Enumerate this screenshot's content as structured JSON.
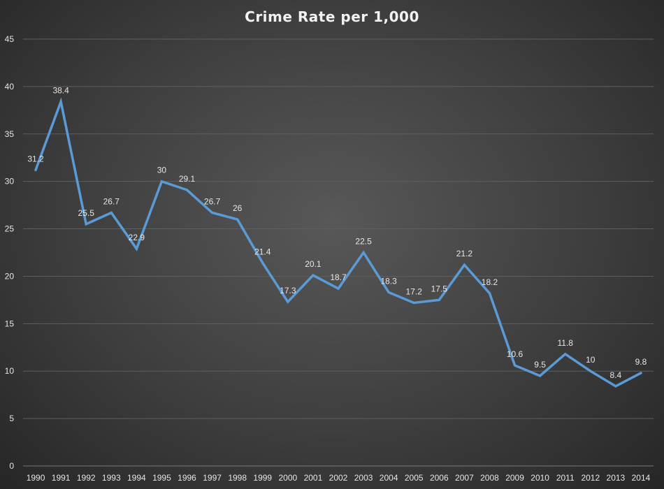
{
  "chart_data": {
    "type": "line",
    "title": "Crime Rate per 1,000",
    "xlabel": "",
    "ylabel": "",
    "ylim": [
      0,
      45
    ],
    "yticks": [
      0,
      5,
      10,
      15,
      20,
      25,
      30,
      35,
      40,
      45
    ],
    "grid": true,
    "categories": [
      "1990",
      "1991",
      "1992",
      "1993",
      "1994",
      "1995",
      "1996",
      "1997",
      "1998",
      "1999",
      "2000",
      "2001",
      "2002",
      "2003",
      "2004",
      "2005",
      "2006",
      "2007",
      "2008",
      "2009",
      "2010",
      "2011",
      "2012",
      "2013",
      "2014"
    ],
    "series": [
      {
        "name": "Crime Rate per 1,000",
        "values": [
          31.2,
          38.4,
          25.5,
          26.7,
          22.9,
          30,
          29.1,
          26.7,
          26,
          21.4,
          17.3,
          20.1,
          18.7,
          22.5,
          18.3,
          17.2,
          17.5,
          21.2,
          18.2,
          10.6,
          9.5,
          11.8,
          10,
          8.4,
          9.8
        ]
      }
    ],
    "data_labels": [
      "31.2",
      "38.4",
      "25.5",
      "26.7",
      "22.9",
      "30",
      "29.1",
      "26.7",
      "26",
      "21.4",
      "17.3",
      "20.1",
      "18.7",
      "22.5",
      "18.3",
      "17.2",
      "17.5",
      "21.2",
      "18.2",
      "10.6",
      "9.5",
      "11.8",
      "10",
      "8.4",
      "9.8"
    ],
    "colors": {
      "line": "#5b9bd5",
      "grid": "#5f5f5f",
      "text": "#e6e6e6"
    }
  }
}
